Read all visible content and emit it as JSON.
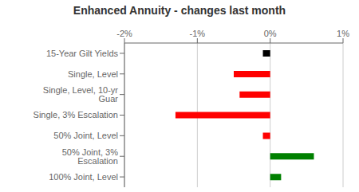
{
  "chart_data": {
    "type": "bar",
    "title": "Enhanced Annuity - changes last month",
    "orientation": "horizontal",
    "categories": [
      "15-Year Gilt Yields",
      "Single, Level",
      "Single, Level, 10-yr Guar",
      "Single, 3% Escalation",
      "50% Joint, Level",
      "50% Joint, 3% Escalation",
      "100% Joint, Level"
    ],
    "values": [
      -0.1,
      -0.5,
      -0.42,
      -1.3,
      -0.1,
      0.6,
      0.15
    ],
    "colors": [
      "#000000",
      "#ff0000",
      "#ff0000",
      "#ff0000",
      "#ff0000",
      "#008000",
      "#008000"
    ],
    "xlim": [
      -2.0,
      1.0
    ],
    "xticks": [
      {
        "value": -2.0,
        "label": "-2%"
      },
      {
        "value": -1.0,
        "label": "-1%"
      },
      {
        "value": 0.0,
        "label": "0%"
      },
      {
        "value": 1.0,
        "label": "1%"
      }
    ],
    "grid": true
  }
}
